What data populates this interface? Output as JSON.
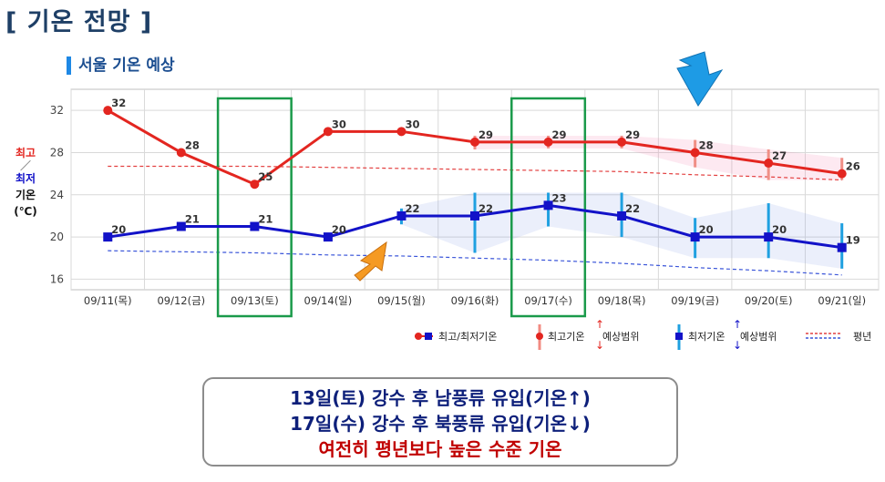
{
  "page_title": "[ 기온 전망 ]",
  "chart_title": "서울 기온 예상",
  "y_axis_label": {
    "high": "최고",
    "slash": "／",
    "low": "최저",
    "temp": "기온",
    "unit": "(℃)"
  },
  "colors": {
    "high": "#e32620",
    "low": "#1212c8",
    "highlight_box": "#1a9a4a",
    "arrow_blue": "#1e9be5",
    "arrow_orange": "#f59a23",
    "avg_high": "#e34040",
    "avg_low": "#3a55d9"
  },
  "chart_data": {
    "type": "line",
    "categories": [
      "09/11(목)",
      "09/12(금)",
      "09/13(토)",
      "09/14(일)",
      "09/15(월)",
      "09/16(화)",
      "09/17(수)",
      "09/18(목)",
      "09/19(금)",
      "09/20(토)",
      "09/21(일)"
    ],
    "ylim": [
      15,
      34
    ],
    "yticks": [
      16,
      20,
      24,
      28,
      32
    ],
    "grid": true,
    "series": [
      {
        "name": "최고기온",
        "values": [
          32,
          28,
          25,
          30,
          30,
          29,
          29,
          29,
          28,
          27,
          26
        ]
      },
      {
        "name": "최저기온",
        "values": [
          20,
          21,
          21,
          20,
          22,
          22,
          23,
          22,
          20,
          20,
          19
        ]
      }
    ],
    "high_range": [
      null,
      null,
      null,
      null,
      null,
      [
        28.3,
        29.6
      ],
      [
        28.4,
        29.6
      ],
      [
        28.4,
        29.6
      ],
      [
        26.6,
        29.2
      ],
      [
        25.4,
        28.3
      ],
      [
        25.4,
        27.5
      ]
    ],
    "low_range": [
      null,
      null,
      null,
      null,
      [
        21.2,
        22.7
      ],
      [
        18.5,
        24.2
      ],
      [
        21.0,
        24.2
      ],
      [
        20.0,
        24.2
      ],
      [
        18.0,
        21.8
      ],
      [
        18.0,
        23.2
      ],
      [
        17.0,
        21.3
      ]
    ],
    "avg_high": [
      26.7,
      26.7,
      26.7,
      26.6,
      26.5,
      26.4,
      26.3,
      26.2,
      25.9,
      25.7,
      25.4
    ],
    "avg_low": [
      18.7,
      18.6,
      18.5,
      18.3,
      18.2,
      18.0,
      17.8,
      17.5,
      17.1,
      16.8,
      16.4
    ],
    "highlighted_categories": [
      "09/13(토)",
      "09/17(수)"
    ],
    "legend": {
      "position": "bottom-right",
      "items": [
        "최고/최저기온",
        "최고기온",
        "예상범위",
        "최저기온",
        "예상범위",
        "평년"
      ]
    }
  },
  "notes": [
    "13일(토) 강수 후 남풍류 유입(기온↑)",
    "17일(수) 강수 후 북풍류 유입(기온↓)",
    "여전히 평년보다 높은 수준 기온"
  ]
}
